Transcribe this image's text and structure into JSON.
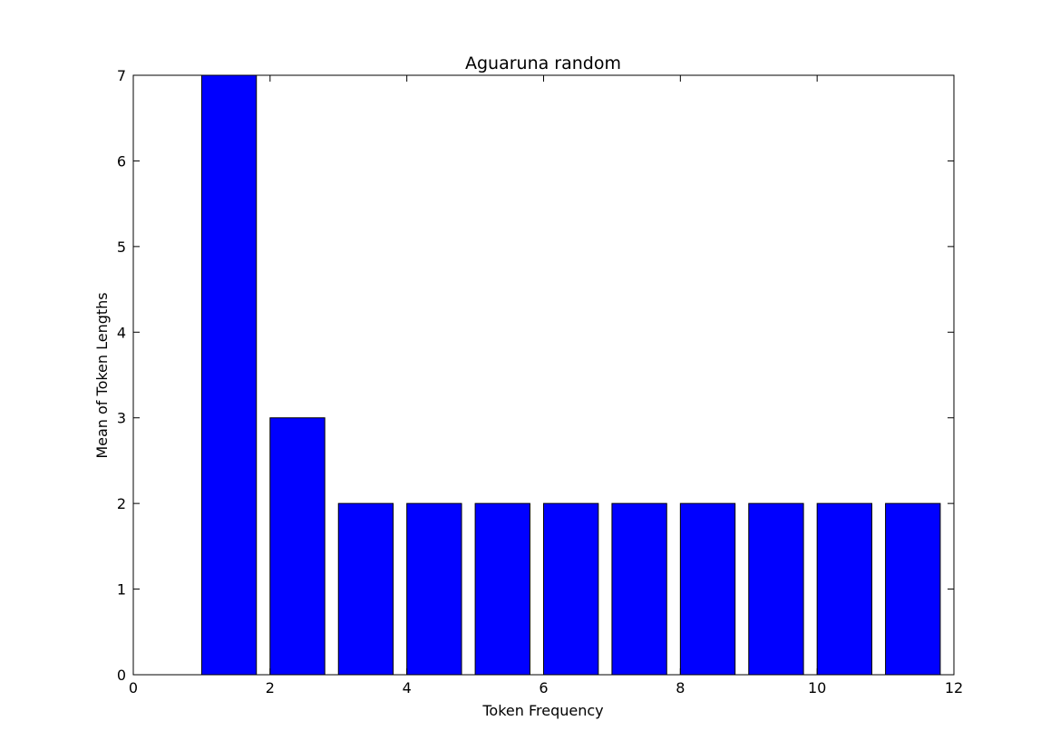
{
  "chart_data": {
    "type": "bar",
    "title": "Aguaruna random",
    "xlabel": "Token Frequency",
    "ylabel": "Mean of Token Lengths",
    "x": [
      1,
      2,
      3,
      4,
      5,
      6,
      7,
      8,
      9,
      10,
      11
    ],
    "values": [
      7,
      3,
      2,
      2,
      2,
      2,
      2,
      2,
      2,
      2,
      2
    ],
    "bar_width": 0.8,
    "xlim": [
      0,
      12
    ],
    "ylim": [
      0,
      7
    ],
    "xticks": [
      0,
      2,
      4,
      6,
      8,
      10,
      12
    ],
    "yticks": [
      0,
      1,
      2,
      3,
      4,
      5,
      6,
      7
    ],
    "grid": false,
    "bar_color": "#0000ff",
    "edge_color": "#000000"
  }
}
